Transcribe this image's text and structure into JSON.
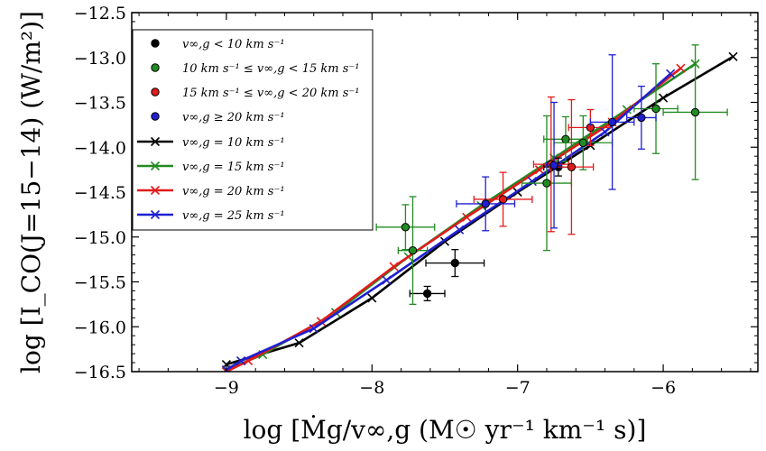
{
  "chart_data": {
    "type": "scatter",
    "xlabel": "log [Ṁg/v∞,g (M☉ yr⁻¹ km⁻¹ s)]",
    "ylabel": "log [I_CO(J=15−14) (W/m²)]",
    "xlim": [
      -9.65,
      -5.35
    ],
    "ylim": [
      -16.5,
      -12.5
    ],
    "x_ticks": [
      -9,
      -8,
      -7,
      -6
    ],
    "x_tick_labels": [
      "−9",
      "−8",
      "−7",
      "−6"
    ],
    "y_ticks": [
      -16.5,
      -16.0,
      -15.5,
      -15.0,
      -14.5,
      -14.0,
      -13.5,
      -13.0,
      -12.5
    ],
    "y_tick_labels": [
      "−16.5",
      "−16.0",
      "−15.5",
      "−15.0",
      "−14.5",
      "−14.0",
      "−13.5",
      "−13.0",
      "−12.5"
    ],
    "legend_position": "top-left",
    "legend": [
      {
        "label": "v∞,g < 10 km s⁻¹",
        "kind": "point",
        "color": "#000000"
      },
      {
        "label": "10 km s⁻¹ ≤ v∞,g < 15 km s⁻¹",
        "kind": "point",
        "color": "#228b22"
      },
      {
        "label": "15 km s⁻¹ ≤ v∞,g < 20 km s⁻¹",
        "kind": "point",
        "color": "#e31a1c"
      },
      {
        "label": "v∞,g ≥ 20 km s⁻¹",
        "kind": "point",
        "color": "#1f1fd1"
      },
      {
        "label": "v∞,g = 10 km s⁻¹",
        "kind": "line",
        "color": "#000000"
      },
      {
        "label": "v∞,g = 15 km s⁻¹",
        "kind": "line",
        "color": "#228b22"
      },
      {
        "label": "v∞,g = 20 km s⁻¹",
        "kind": "line",
        "color": "#e31a1c"
      },
      {
        "label": "v∞,g = 25 km s⁻¹",
        "kind": "line",
        "color": "#1f1fd1"
      }
    ],
    "model_series": [
      {
        "name": "v∞,g = 10 km s⁻¹",
        "color": "#000000",
        "x": [
          -9.0,
          -8.5,
          -8.0,
          -7.5,
          -7.0,
          -6.5,
          -6.0,
          -5.52
        ],
        "y": [
          -16.42,
          -16.18,
          -15.68,
          -15.05,
          -14.5,
          -13.98,
          -13.45,
          -12.99
        ]
      },
      {
        "name": "v∞,g = 15 km s⁻¹",
        "color": "#228b22",
        "x": [
          -9.0,
          -8.75,
          -8.25,
          -7.75,
          -7.25,
          -6.75,
          -6.25,
          -5.78
        ],
        "y": [
          -16.48,
          -16.31,
          -15.84,
          -15.22,
          -14.65,
          -14.12,
          -13.58,
          -13.07
        ]
      },
      {
        "name": "v∞,g = 20 km s⁻¹",
        "color": "#e31a1c",
        "x": [
          -9.0,
          -8.85,
          -8.35,
          -7.85,
          -7.35,
          -6.85,
          -6.35,
          -5.88
        ],
        "y": [
          -16.5,
          -16.38,
          -15.94,
          -15.33,
          -14.78,
          -14.25,
          -13.72,
          -13.12
        ]
      },
      {
        "name": "v∞,g = 25 km s⁻¹",
        "color": "#1f1fd1",
        "x": [
          -9.0,
          -8.9,
          -8.4,
          -7.9,
          -7.4,
          -6.9,
          -6.4,
          -5.95
        ],
        "y": [
          -16.48,
          -16.38,
          -16.02,
          -15.48,
          -14.92,
          -14.38,
          -13.83,
          -13.18
        ]
      }
    ],
    "observations": [
      {
        "group": "v∞,g < 10 km s⁻¹",
        "color": "#000000",
        "points": [
          {
            "x": -7.43,
            "y": -15.29,
            "xerr": 0.2,
            "yerr": 0.15
          },
          {
            "x": -7.62,
            "y": -15.63,
            "xerr": 0.12,
            "yerr": 0.08
          },
          {
            "x": -6.72,
            "y": -14.22,
            "xerr": 0.1,
            "yerr": 0.1
          }
        ]
      },
      {
        "group": "10 km s⁻¹ ≤ v∞,g < 15 km s⁻¹",
        "color": "#228b22",
        "points": [
          {
            "x": -7.77,
            "y": -14.89,
            "xerr": 0.2,
            "yerr": 0.25
          },
          {
            "x": -7.72,
            "y": -15.15,
            "xerr": 0.1,
            "yerr": 0.6
          },
          {
            "x": -6.8,
            "y": -14.4,
            "xerr": 0.17,
            "yerr": 0.75
          },
          {
            "x": -6.67,
            "y": -13.91,
            "xerr": 0.15,
            "yerr": 0.25
          },
          {
            "x": -6.55,
            "y": -13.95,
            "xerr": 0.2,
            "yerr": 0.3
          },
          {
            "x": -6.05,
            "y": -13.57,
            "xerr": 0.15,
            "yerr": 0.5
          },
          {
            "x": -5.78,
            "y": -13.61,
            "xerr": 0.22,
            "yerr": 0.75
          }
        ]
      },
      {
        "group": "15 km s⁻¹ ≤ v∞,g < 20 km s⁻¹",
        "color": "#e31a1c",
        "points": [
          {
            "x": -7.1,
            "y": -14.58,
            "xerr": 0.2,
            "yerr": 0.3
          },
          {
            "x": -6.77,
            "y": -14.19,
            "xerr": 0.12,
            "yerr": 0.75
          },
          {
            "x": -6.63,
            "y": -14.22,
            "xerr": 0.15,
            "yerr": 0.75
          },
          {
            "x": -6.5,
            "y": -13.78,
            "xerr": 0.15,
            "yerr": 0.2
          }
        ]
      },
      {
        "group": "v∞,g ≥ 20 km s⁻¹",
        "color": "#1f1fd1",
        "points": [
          {
            "x": -7.22,
            "y": -14.63,
            "xerr": 0.2,
            "yerr": 0.3
          },
          {
            "x": -6.75,
            "y": -14.2,
            "xerr": 0.05,
            "yerr": 0.7
          },
          {
            "x": -6.35,
            "y": -13.72,
            "xerr": 0.15,
            "yerr": 0.75
          },
          {
            "x": -6.15,
            "y": -13.67,
            "xerr": 0.1,
            "yerr": 0.35
          }
        ]
      }
    ]
  }
}
